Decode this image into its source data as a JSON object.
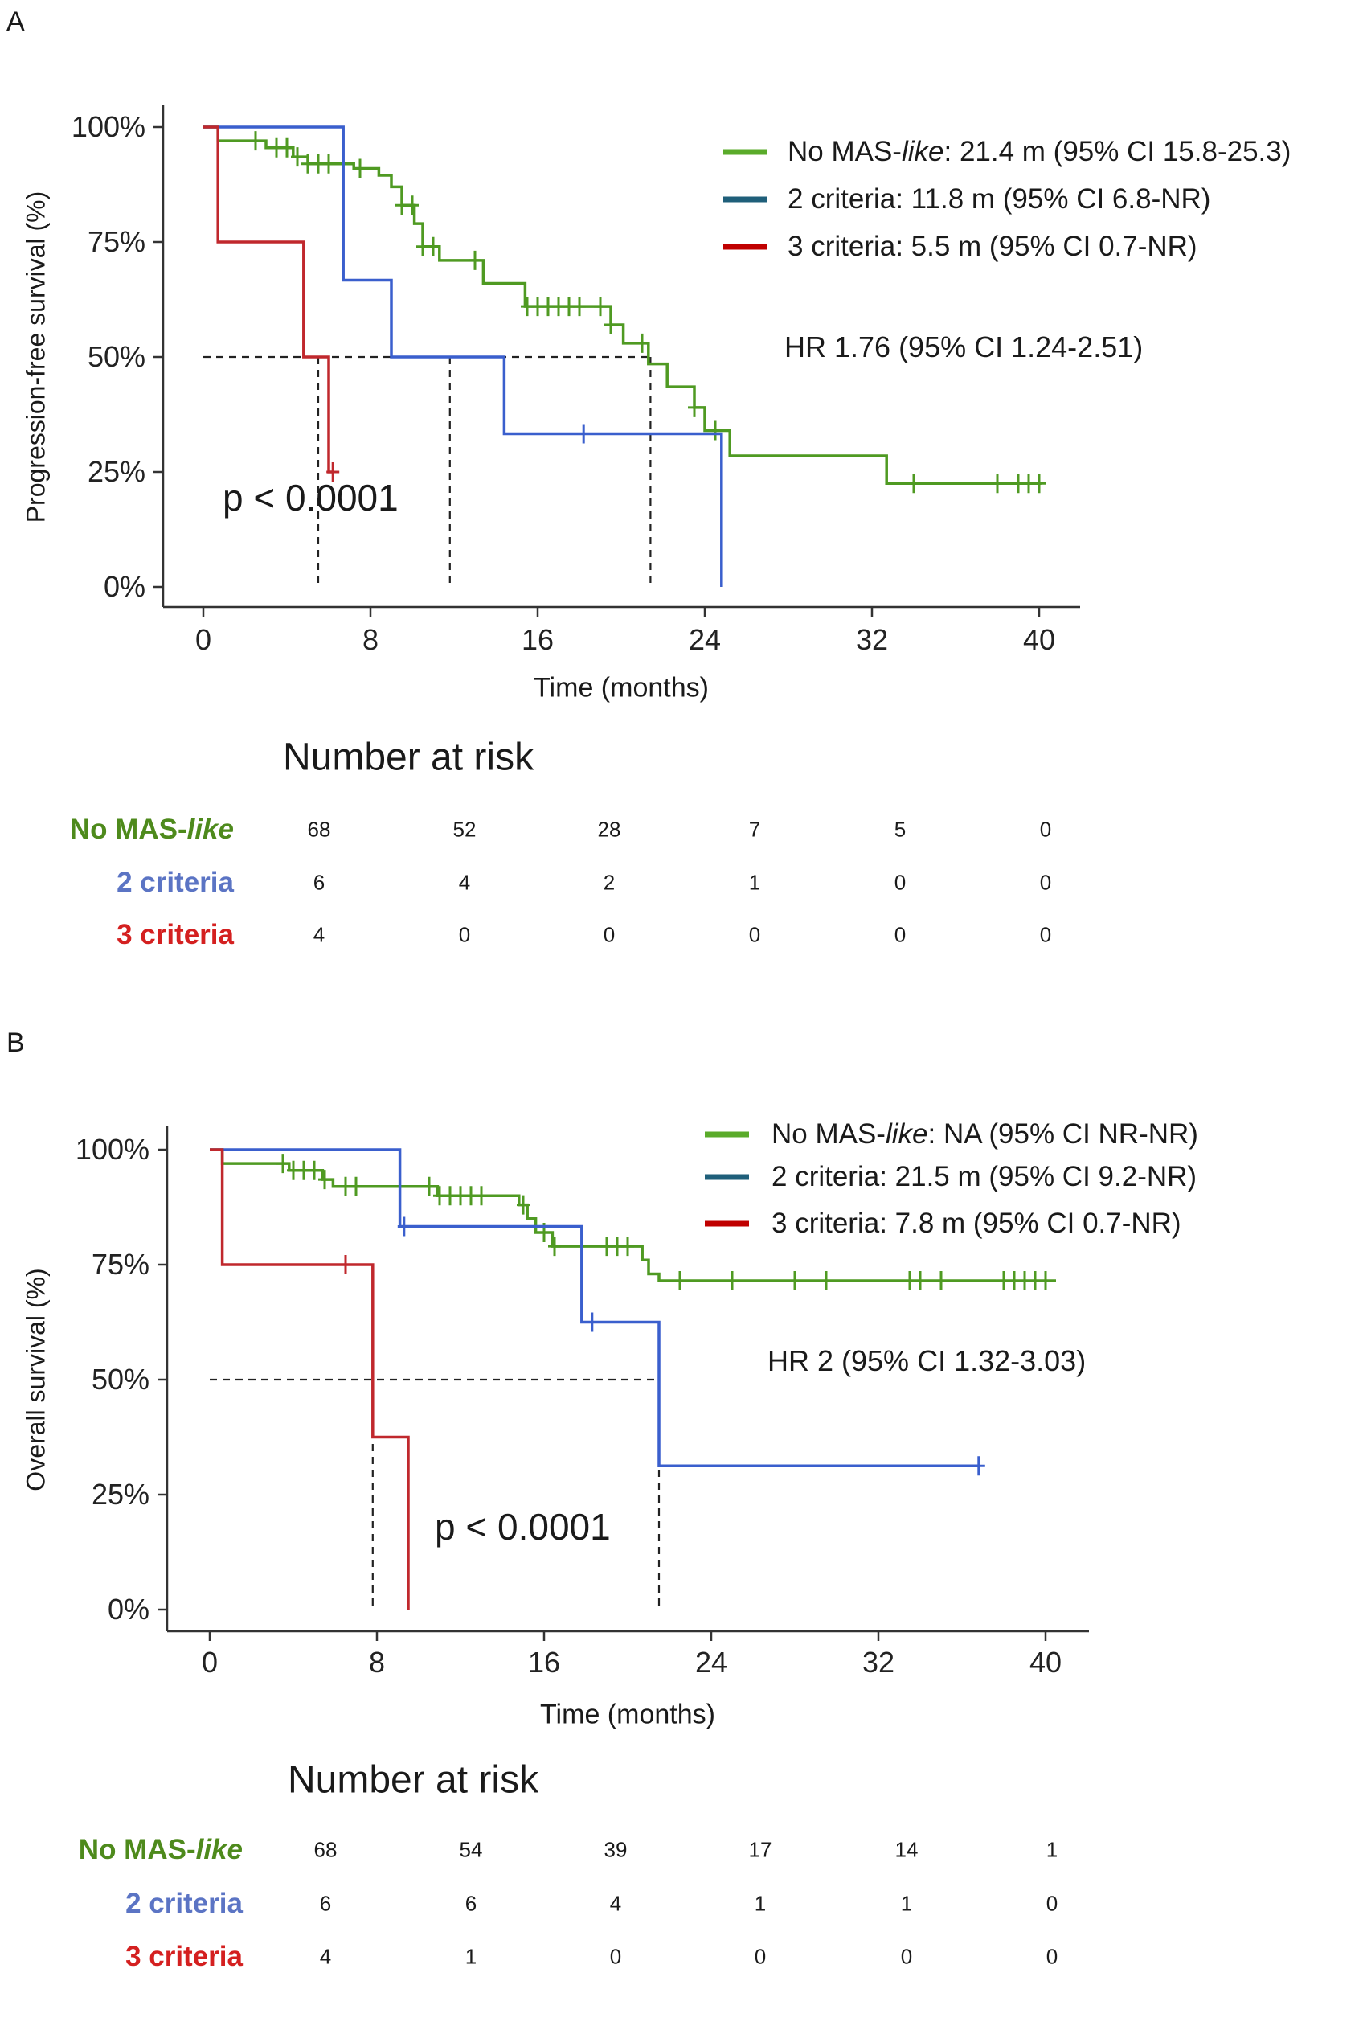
{
  "chart_data": [
    {
      "panel": "A",
      "type": "line",
      "title": "",
      "xlabel": "Time (months)",
      "ylabel": "Progression-free survival (%)",
      "xlim": [
        0,
        40
      ],
      "ylim": [
        0,
        1
      ],
      "xticks": [
        "0",
        "8",
        "16",
        "24",
        "32",
        "40"
      ],
      "xtick_values": [
        0,
        8,
        16,
        24,
        32,
        40
      ],
      "yticks": [
        "0%",
        "25%",
        "50%",
        "75%",
        "100%"
      ],
      "ytick_values": [
        0,
        0.25,
        0.5,
        0.75,
        1
      ],
      "hr": "HR 1.76 (95% CI 1.24-2.51)",
      "p": "p < 0.0001",
      "medians": [
        21.4,
        11.8,
        5.5
      ],
      "series": [
        {
          "name": "No MAS-like",
          "legend_pre": "No MAS-",
          "legend_it": "like",
          "legend_post": ": 21.4 m (95% CI 15.8-25.3)",
          "color": "#4f9a22",
          "legend_color": "#5aab2a",
          "steps": [
            [
              0,
              1
            ],
            [
              0.7,
              0.97
            ],
            [
              3,
              0.955
            ],
            [
              4.3,
              0.935
            ],
            [
              5,
              0.92
            ],
            [
              7.2,
              0.91
            ],
            [
              8.4,
              0.895
            ],
            [
              9,
              0.87
            ],
            [
              9.5,
              0.83
            ],
            [
              10.1,
              0.79
            ],
            [
              10.5,
              0.74
            ],
            [
              11.3,
              0.71
            ],
            [
              13.4,
              0.66
            ],
            [
              15.4,
              0.61
            ],
            [
              19.5,
              0.57
            ],
            [
              20.1,
              0.53
            ],
            [
              21.3,
              0.485
            ],
            [
              22.2,
              0.435
            ],
            [
              23.5,
              0.39
            ],
            [
              24,
              0.34
            ],
            [
              25.2,
              0.285
            ],
            [
              32.7,
              0.225
            ]
          ],
          "end": 40.1,
          "censors": [
            2.5,
            3.5,
            4,
            4.5,
            5,
            5.5,
            6,
            7.5,
            9.5,
            10,
            10.5,
            11,
            13,
            15.5,
            16,
            16.5,
            17,
            17.5,
            18,
            19,
            19.5,
            21,
            23.5,
            24.5,
            34,
            38,
            39,
            39.5,
            40
          ]
        },
        {
          "name": "2 criteria",
          "legend_pre": "2 criteria: 11.8 m (95% CI 6.8-NR)",
          "legend_it": "",
          "legend_post": "",
          "color": "#3a5fcd",
          "legend_color": "#1f5f7a",
          "steps": [
            [
              0,
              1
            ],
            [
              6.7,
              0.667
            ],
            [
              9,
              0.5
            ],
            [
              14.4,
              0.333
            ],
            [
              24.8,
              0
            ]
          ],
          "end": 24.8,
          "censors": [
            18.2
          ]
        },
        {
          "name": "3 criteria",
          "legend_pre": "3 criteria: 5.5 m (95% CI 0.7-NR)",
          "legend_it": "",
          "legend_post": "",
          "color": "#c0282d",
          "legend_color": "#c00000",
          "steps": [
            [
              0,
              1
            ],
            [
              0.7,
              0.75
            ],
            [
              4.8,
              0.5
            ],
            [
              6,
              0.25
            ]
          ],
          "end": 6.2,
          "censors": [
            6.2
          ]
        }
      ],
      "risk_table": {
        "title": "Number at risk",
        "times": [
          0,
          8,
          16,
          24,
          32,
          40
        ],
        "rows": [
          {
            "label_pre": "No MAS-",
            "label_it": "like",
            "color": "#4e8a1c",
            "values": [
              "68",
              "52",
              "28",
              "7",
              "5",
              "0"
            ]
          },
          {
            "label_pre": "2 criteria",
            "label_it": "",
            "color": "#5b74c4",
            "values": [
              "6",
              "4",
              "2",
              "1",
              "0",
              "0"
            ]
          },
          {
            "label_pre": "3 criteria",
            "label_it": "",
            "color": "#d42020",
            "values": [
              "4",
              "0",
              "0",
              "0",
              "0",
              "0"
            ]
          }
        ]
      }
    },
    {
      "panel": "B",
      "type": "line",
      "title": "",
      "xlabel": "Time (months)",
      "ylabel": "Overall survival (%)",
      "xlim": [
        0,
        40
      ],
      "ylim": [
        0,
        1
      ],
      "xticks": [
        "0",
        "8",
        "16",
        "24",
        "32",
        "40"
      ],
      "xtick_values": [
        0,
        8,
        16,
        24,
        32,
        40
      ],
      "yticks": [
        "0%",
        "25%",
        "50%",
        "75%",
        "100%"
      ],
      "ytick_values": [
        0,
        0.25,
        0.5,
        0.75,
        1
      ],
      "hr": "HR 2 (95% CI 1.32-3.03)",
      "p": "p < 0.0001",
      "medians": [
        21.5,
        7.8
      ],
      "series": [
        {
          "name": "No MAS-like",
          "legend_pre": "No MAS-",
          "legend_it": "like",
          "legend_post": ": NA (95% CI NR-NR)",
          "color": "#4f9a22",
          "legend_color": "#5aab2a",
          "steps": [
            [
              0,
              1
            ],
            [
              0.6,
              0.97
            ],
            [
              3.8,
              0.955
            ],
            [
              5.4,
              0.935
            ],
            [
              5.9,
              0.92
            ],
            [
              10.9,
              0.9
            ],
            [
              14.8,
              0.88
            ],
            [
              15.2,
              0.85
            ],
            [
              15.6,
              0.82
            ],
            [
              16.4,
              0.79
            ],
            [
              20.7,
              0.76
            ],
            [
              21,
              0.73
            ],
            [
              21.5,
              0.715
            ]
          ],
          "end": 40.5,
          "censors": [
            3.5,
            4,
            4.5,
            5,
            5.5,
            6.5,
            7,
            10.5,
            11,
            11.5,
            12,
            12.5,
            13,
            15,
            16,
            16.5,
            19,
            19.5,
            20,
            22.5,
            25,
            28,
            29.5,
            33.5,
            34,
            35,
            38,
            38.5,
            39,
            39.5,
            40
          ]
        },
        {
          "name": "2 criteria",
          "legend_pre": "2 criteria: 21.5 m (95% CI 9.2-NR)",
          "legend_it": "",
          "legend_post": "",
          "color": "#3a5fcd",
          "legend_color": "#1f5f7a",
          "steps": [
            [
              0,
              1
            ],
            [
              9.1,
              0.833
            ],
            [
              17.8,
              0.625
            ],
            [
              21.5,
              0.3125
            ]
          ],
          "end": 36.8,
          "censors": [
            9.3,
            18.3,
            36.8
          ]
        },
        {
          "name": "3 criteria",
          "legend_pre": "3 criteria: 7.8 m (95% CI 0.7-NR)",
          "legend_it": "",
          "legend_post": "",
          "color": "#c0282d",
          "legend_color": "#c00000",
          "steps": [
            [
              0,
              1
            ],
            [
              0.6,
              0.75
            ],
            [
              7.8,
              0.375
            ],
            [
              9.5,
              0
            ]
          ],
          "end": 9.5,
          "censors": [
            6.5
          ]
        }
      ],
      "risk_table": {
        "title": "Number at risk",
        "times": [
          0,
          8,
          16,
          24,
          32,
          40
        ],
        "rows": [
          {
            "label_pre": "No MAS-",
            "label_it": "like",
            "color": "#4e8a1c",
            "values": [
              "68",
              "54",
              "39",
              "17",
              "14",
              "1"
            ]
          },
          {
            "label_pre": "2 criteria",
            "label_it": "",
            "color": "#5b74c4",
            "values": [
              "6",
              "6",
              "4",
              "1",
              "1",
              "0"
            ]
          },
          {
            "label_pre": "3 criteria",
            "label_it": "",
            "color": "#d42020",
            "values": [
              "4",
              "1",
              "0",
              "0",
              "0",
              "0"
            ]
          }
        ]
      }
    }
  ],
  "panels": {
    "a_label": "A",
    "b_label": "B"
  }
}
